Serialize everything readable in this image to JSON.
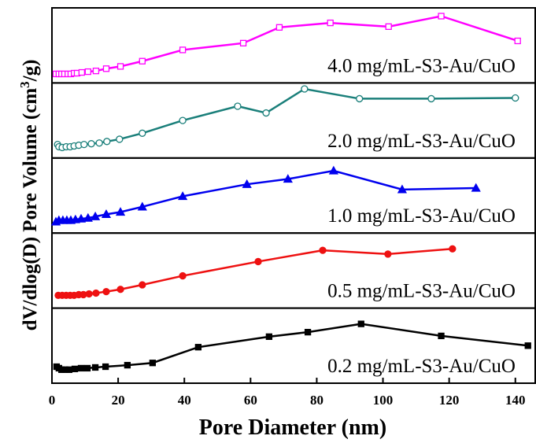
{
  "chart_data": {
    "type": "line",
    "x_label": "Pore Diameter (nm)",
    "y_label_parts": [
      "dV/dlog(D) Pore Volume (cm",
      "3",
      "/g)"
    ],
    "xlim": [
      0,
      146
    ],
    "xticks": [
      0,
      20,
      40,
      60,
      80,
      100,
      120,
      140
    ],
    "ylim": [
      0,
      100
    ],
    "series": [
      {
        "name": "4.0 mg/mL-S3-Au/CuO",
        "color": "#ff00ff",
        "marker": "square",
        "filled": false,
        "x": [
          1.2,
          2.1,
          2.9,
          3.8,
          4.8,
          5.7,
          6.7,
          7.6,
          9.0,
          10.9,
          13.3,
          16.4,
          20.7,
          27.3,
          39.5,
          57.8,
          68.7,
          84.1,
          101.7,
          117.6,
          140.7
        ],
        "values": [
          12,
          12,
          12,
          12,
          12,
          12,
          13,
          13,
          14,
          15,
          16,
          19,
          22,
          29,
          44,
          53,
          74,
          80,
          75,
          89,
          56
        ]
      },
      {
        "name": "2.0 mg/mL-S3-Au/CuO",
        "color": "#1a7f7a",
        "marker": "circle",
        "filled": false,
        "x": [
          1.7,
          2.1,
          3.1,
          4.3,
          5.5,
          6.7,
          8.1,
          9.7,
          11.9,
          14.3,
          16.6,
          20.4,
          27.3,
          39.5,
          56.1,
          64.7,
          76.3,
          92.9,
          114.6,
          140.0
        ],
        "values": [
          18,
          15,
          14,
          15,
          15,
          16,
          17,
          18,
          19,
          20,
          22,
          25,
          33,
          50,
          69,
          60,
          92,
          79,
          79,
          80
        ]
      },
      {
        "name": "1.0 mg/mL-S3-Au/CuO",
        "color": "#0000ee",
        "marker": "triangle",
        "filled": true,
        "x": [
          1.2,
          2.1,
          3.3,
          4.5,
          5.7,
          7.1,
          8.8,
          10.9,
          13.1,
          16.4,
          20.7,
          27.3,
          39.5,
          58.9,
          71.3,
          85.1,
          105.8,
          128.1
        ],
        "values": [
          15,
          17,
          17,
          17,
          17,
          18,
          19,
          20,
          22,
          25,
          28,
          35,
          49,
          65,
          72,
          83,
          58,
          60
        ]
      },
      {
        "name": "0.5 mg/mL-S3-Au/CuO",
        "color": "#ee1111",
        "marker": "circle",
        "filled": true,
        "x": [
          1.9,
          3.1,
          4.3,
          5.5,
          6.7,
          8.1,
          9.5,
          11.2,
          13.3,
          16.4,
          20.7,
          27.3,
          39.5,
          62.3,
          81.8,
          101.5,
          121.0
        ],
        "values": [
          17,
          17,
          17,
          17,
          17,
          18,
          18,
          19,
          20,
          22,
          25,
          31,
          43,
          62,
          77,
          72,
          79
        ]
      },
      {
        "name": "0.2 mg/mL-S3-Au/CuO",
        "color": "#000000",
        "marker": "square",
        "filled": true,
        "x": [
          1.4,
          2.1,
          2.9,
          4.0,
          5.2,
          6.9,
          8.8,
          10.7,
          13.1,
          16.2,
          22.8,
          30.4,
          44.2,
          65.6,
          77.3,
          93.4,
          117.6,
          143.8
        ],
        "values": [
          22,
          20,
          18,
          18,
          18,
          19,
          20,
          20,
          21,
          22,
          24,
          27,
          48,
          62,
          68,
          79,
          63,
          50
        ]
      }
    ]
  }
}
